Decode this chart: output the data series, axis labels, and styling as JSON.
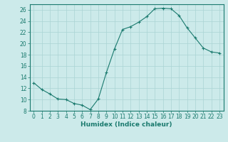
{
  "x": [
    0,
    1,
    2,
    3,
    4,
    5,
    6,
    7,
    8,
    9,
    10,
    11,
    12,
    13,
    14,
    15,
    16,
    17,
    18,
    19,
    20,
    21,
    22,
    23
  ],
  "y": [
    13.0,
    11.8,
    11.0,
    10.1,
    10.0,
    9.3,
    9.0,
    8.2,
    10.1,
    14.8,
    19.0,
    22.5,
    23.0,
    23.8,
    24.8,
    26.2,
    26.3,
    26.2,
    25.0,
    22.8,
    21.0,
    19.2,
    18.5,
    18.3
  ],
  "xlabel": "Humidex (Indice chaleur)",
  "xlim": [
    -0.5,
    23.5
  ],
  "ylim": [
    8,
    27
  ],
  "yticks": [
    8,
    10,
    12,
    14,
    16,
    18,
    20,
    22,
    24,
    26
  ],
  "xticks": [
    0,
    1,
    2,
    3,
    4,
    5,
    6,
    7,
    8,
    9,
    10,
    11,
    12,
    13,
    14,
    15,
    16,
    17,
    18,
    19,
    20,
    21,
    22,
    23
  ],
  "line_color": "#1a7a6e",
  "marker": "+",
  "bg_color": "#cceaea",
  "grid_color": "#aad4d4",
  "tick_label_fontsize": 5.5,
  "xlabel_fontsize": 6.5
}
